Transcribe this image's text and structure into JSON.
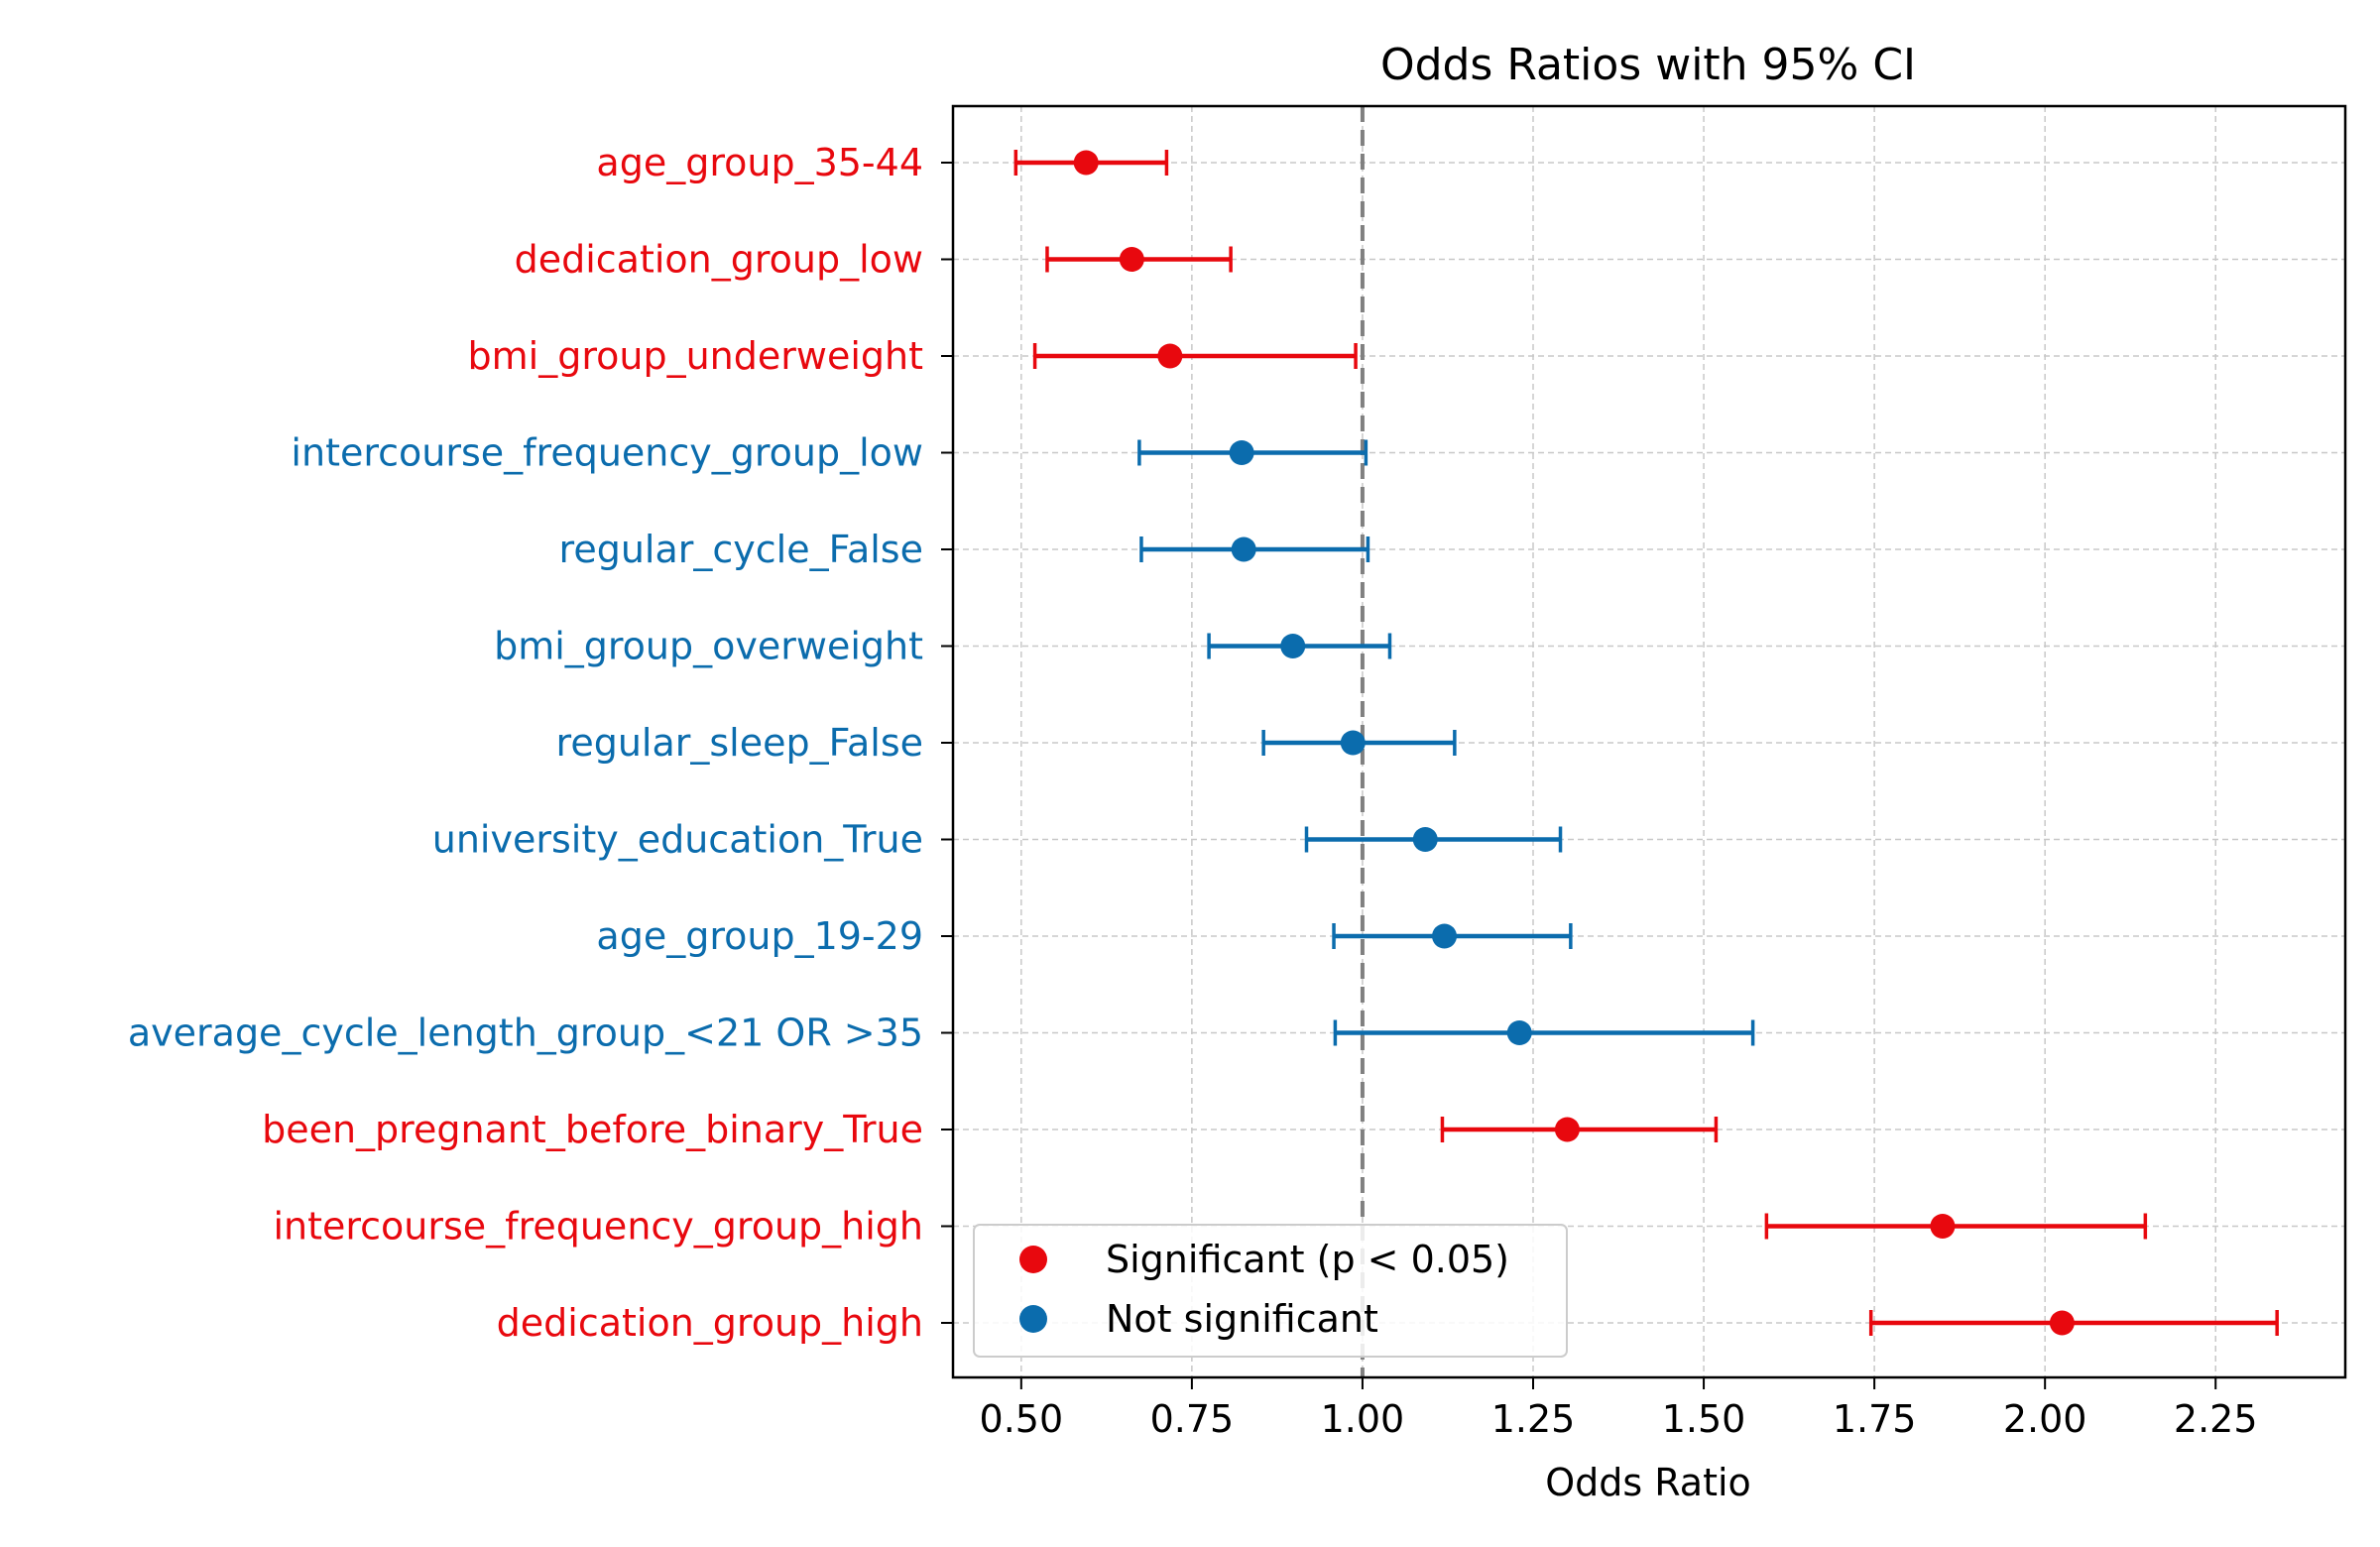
{
  "chart_data": {
    "type": "forest",
    "title": "Odds Ratios with 95% CI",
    "xlabel": "Odds Ratio",
    "ylabel": "",
    "xlim": [
      0.4,
      2.44
    ],
    "xticks": [
      0.5,
      0.75,
      1.0,
      1.25,
      1.5,
      1.75,
      2.0,
      2.25
    ],
    "xtick_labels": [
      "0.50",
      "0.75",
      "1.00",
      "1.25",
      "1.50",
      "1.75",
      "2.00",
      "2.25"
    ],
    "reference_line": 1.0,
    "grid": true,
    "legend_position": "lower-left",
    "colors": {
      "significant": "#e8080e",
      "not_significant": "#0b6cad",
      "reference": "#808080"
    },
    "legend": [
      {
        "label": "Significant (p < 0.05)",
        "group": "significant"
      },
      {
        "label": "Not significant",
        "group": "not_significant"
      }
    ],
    "rows": [
      {
        "label": "age_group_35-44",
        "or": 0.595,
        "low": 0.492,
        "high": 0.713,
        "significant": true
      },
      {
        "label": "dedication_group_low",
        "or": 0.662,
        "low": 0.538,
        "high": 0.807,
        "significant": true
      },
      {
        "label": "bmi_group_underweight",
        "or": 0.718,
        "low": 0.52,
        "high": 0.99,
        "significant": true
      },
      {
        "label": "intercourse_frequency_group_low",
        "or": 0.823,
        "low": 0.673,
        "high": 1.005,
        "significant": false
      },
      {
        "label": "regular_cycle_False",
        "or": 0.826,
        "low": 0.676,
        "high": 1.008,
        "significant": false
      },
      {
        "label": "bmi_group_overweight",
        "or": 0.898,
        "low": 0.775,
        "high": 1.04,
        "significant": false
      },
      {
        "label": "regular_sleep_False",
        "or": 0.986,
        "low": 0.855,
        "high": 1.135,
        "significant": false
      },
      {
        "label": "university_education_True",
        "or": 1.092,
        "low": 0.918,
        "high": 1.29,
        "significant": false
      },
      {
        "label": "age_group_19-29",
        "or": 1.12,
        "low": 0.958,
        "high": 1.305,
        "significant": false
      },
      {
        "label": "average_cycle_length_group_<21 OR >35",
        "or": 1.23,
        "low": 0.96,
        "high": 1.572,
        "significant": false
      },
      {
        "label": "been_pregnant_before_binary_True",
        "or": 1.3,
        "low": 1.117,
        "high": 1.518,
        "significant": true
      },
      {
        "label": "intercourse_frequency_group_high",
        "or": 1.85,
        "low": 1.592,
        "high": 2.147,
        "significant": true
      },
      {
        "label": "dedication_group_high",
        "or": 2.025,
        "low": 1.745,
        "high": 2.34,
        "significant": true
      }
    ]
  }
}
